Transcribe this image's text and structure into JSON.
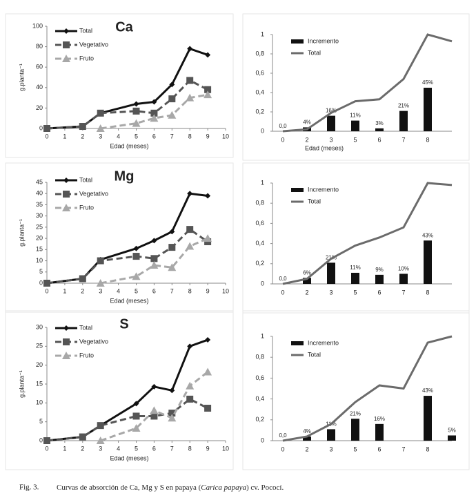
{
  "chart_data": [
    {
      "type": "line",
      "title": "Ca",
      "xlabel": "Edad (meses)",
      "ylabel": "g.planta⁻¹",
      "x": [
        0,
        2,
        3,
        5,
        6,
        7,
        8,
        9
      ],
      "xlim": [
        0,
        10
      ],
      "xticks": [
        0,
        1,
        2,
        3,
        4,
        5,
        6,
        7,
        8,
        9,
        10
      ],
      "ylim": [
        0,
        100
      ],
      "yticks": [
        0,
        20,
        40,
        60,
        80,
        100
      ],
      "series": [
        {
          "name": "Total",
          "color": "#111111",
          "marker": "diamond",
          "dashed": false,
          "values": [
            0,
            2,
            15,
            24,
            26,
            43,
            78,
            72
          ]
        },
        {
          "name": "Vegetativo",
          "color": "#555555",
          "marker": "square",
          "dashed": true,
          "values": [
            0,
            2,
            15,
            17,
            15,
            29,
            47,
            38
          ]
        },
        {
          "name": "Fruto",
          "color": "#a8a8a8",
          "marker": "triangle",
          "dashed": true,
          "values": [
            null,
            null,
            0,
            5,
            10,
            13,
            30,
            33
          ]
        }
      ]
    },
    {
      "type": "bar",
      "xlabel": "Edad (meses)",
      "categories": [
        "0",
        "2",
        "3",
        "5",
        "6",
        "7",
        "8",
        null
      ],
      "ylim": [
        0,
        1
      ],
      "yticks": [
        0,
        {
          "value": 0.2,
          "label": "0,2"
        },
        {
          "value": 0.4,
          "label": "0,4"
        },
        {
          "value": 0.6,
          "label": "0,6"
        },
        {
          "value": 0.8,
          "label": "0,8"
        },
        1
      ],
      "series": [
        {
          "name": "Incremento",
          "type": "bar",
          "color": "#111111",
          "values": [
            0,
            0.04,
            0.16,
            0.11,
            0.03,
            0.21,
            0.45,
            null
          ],
          "value_labels": [
            "0,0",
            "4%",
            "16%",
            "11%",
            "3%",
            "21%",
            "45%",
            null
          ]
        },
        {
          "name": "Total",
          "type": "line",
          "color": "#6b6b6b",
          "values": [
            0,
            0.02,
            0.19,
            0.31,
            0.33,
            0.54,
            1.0,
            0.93
          ]
        }
      ]
    },
    {
      "type": "line",
      "title": "Mg",
      "xlabel": "Edad (meses)",
      "ylabel": "g.planta⁻¹",
      "x": [
        0,
        2,
        3,
        5,
        6,
        7,
        8,
        9
      ],
      "xlim": [
        0,
        10
      ],
      "xticks": [
        0,
        1,
        2,
        3,
        4,
        5,
        6,
        7,
        8,
        9,
        10
      ],
      "ylim": [
        0,
        45
      ],
      "yticks": [
        0,
        5,
        10,
        15,
        20,
        25,
        30,
        35,
        40,
        45
      ],
      "series": [
        {
          "name": "Total",
          "color": "#111111",
          "marker": "diamond",
          "dashed": false,
          "values": [
            0,
            2,
            10.5,
            15.5,
            19,
            23,
            40,
            39
          ]
        },
        {
          "name": "Vegetativo",
          "color": "#555555",
          "marker": "square",
          "dashed": true,
          "values": [
            0,
            2,
            10,
            12,
            11,
            16,
            24,
            18.5
          ]
        },
        {
          "name": "Fruto",
          "color": "#a8a8a8",
          "marker": "triangle",
          "dashed": true,
          "values": [
            null,
            null,
            0,
            3,
            8,
            7,
            16.5,
            20
          ]
        }
      ]
    },
    {
      "type": "bar",
      "categories": [
        "0",
        "2",
        "3",
        "5",
        "6",
        "7",
        "8",
        null
      ],
      "ylim": [
        0,
        1
      ],
      "yticks": [
        0,
        {
          "value": 0.2,
          "label": "0,2"
        },
        {
          "value": 0.4,
          "label": "0,4"
        },
        {
          "value": 0.6,
          "label": "0,6"
        },
        {
          "value": 0.8,
          "label": "0,8"
        },
        1
      ],
      "series": [
        {
          "name": "Incremento",
          "type": "bar",
          "color": "#111111",
          "values": [
            0,
            0.06,
            0.21,
            0.11,
            0.09,
            0.1,
            0.43,
            null
          ],
          "value_labels": [
            "0,0",
            "6%",
            "21%",
            "11%",
            "9%",
            "10%",
            "43%",
            null
          ]
        },
        {
          "name": "Total",
          "type": "line",
          "color": "#6b6b6b",
          "values": [
            0,
            0.05,
            0.25,
            0.38,
            0.46,
            0.56,
            1.0,
            0.98
          ]
        }
      ]
    },
    {
      "type": "line",
      "title": "S",
      "xlabel": "Edad (meses)",
      "ylabel": "g.planta⁻¹",
      "x": [
        0,
        2,
        3,
        5,
        6,
        7,
        8,
        9
      ],
      "xlim": [
        0,
        10
      ],
      "xticks": [
        0,
        1,
        2,
        3,
        4,
        5,
        6,
        7,
        8,
        9,
        10
      ],
      "ylim": [
        0,
        30
      ],
      "yticks": [
        0,
        5,
        10,
        15,
        20,
        25,
        30
      ],
      "series": [
        {
          "name": "Total",
          "color": "#111111",
          "marker": "diamond",
          "dashed": false,
          "values": [
            0,
            1,
            4,
            9.8,
            14.3,
            13.3,
            25,
            26.7
          ]
        },
        {
          "name": "Vegetativo",
          "color": "#555555",
          "marker": "square",
          "dashed": true,
          "values": [
            0,
            1,
            4,
            6.5,
            6.5,
            7.3,
            11,
            8.6
          ]
        },
        {
          "name": "Fruto",
          "color": "#a8a8a8",
          "marker": "triangle",
          "dashed": true,
          "values": [
            null,
            null,
            0,
            3.3,
            8,
            6,
            14.5,
            18.2
          ]
        }
      ]
    },
    {
      "type": "bar",
      "categories": [
        "0",
        "2",
        "3",
        "5",
        "6",
        "7",
        "8",
        null
      ],
      "ylim": [
        0,
        1
      ],
      "yticks": [
        0,
        {
          "value": 0.2,
          "label": "0,2"
        },
        {
          "value": 0.4,
          "label": "0,4"
        },
        {
          "value": 0.6,
          "label": "0,6"
        },
        {
          "value": 0.8,
          "label": "0,8"
        },
        1
      ],
      "series": [
        {
          "name": "Incremento",
          "type": "bar",
          "color": "#111111",
          "values": [
            0,
            0.04,
            0.11,
            0.21,
            0.16,
            null,
            0.43,
            0.05
          ],
          "value_labels": [
            "0,0",
            "4%",
            "11%",
            "21%",
            "16%",
            null,
            "43%",
            "5%"
          ]
        },
        {
          "name": "Total",
          "type": "line",
          "color": "#6b6b6b",
          "values": [
            0,
            0.04,
            0.16,
            0.37,
            0.53,
            0.5,
            0.94,
            1.0
          ]
        }
      ]
    }
  ],
  "caption": {
    "label": "Fig. 3.",
    "text_before": "Curvas de absorción de Ca, Mg y S en papaya (",
    "italic": "Carica papaya",
    "text_after": ") cv. Pococí."
  }
}
